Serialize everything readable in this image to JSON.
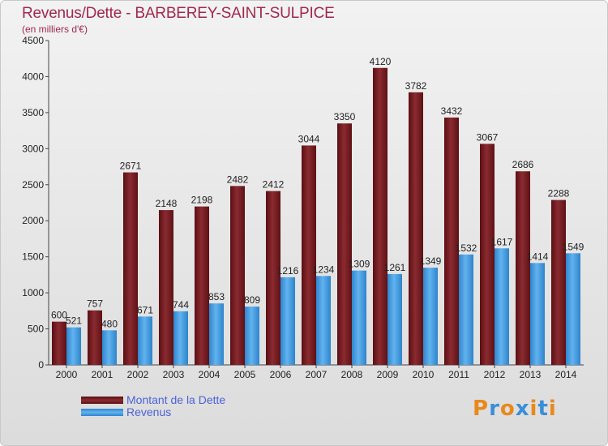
{
  "title": "Revenus/Dette - BARBEREY-SAINT-SULPICE",
  "subtitle": "(en milliers d'€)",
  "chart_data": {
    "type": "bar",
    "categories": [
      "2000",
      "2001",
      "2002",
      "2003",
      "2004",
      "2005",
      "2006",
      "2007",
      "2008",
      "2009",
      "2010",
      "2011",
      "2012",
      "2013",
      "2014"
    ],
    "series": [
      {
        "name": "Montant de la Dette",
        "color": "#7a1a1f",
        "values": [
          600,
          757,
          2671,
          2148,
          2198,
          2482,
          2412,
          3044,
          3350,
          4120,
          3782,
          3432,
          3067,
          2686,
          2288
        ]
      },
      {
        "name": "Revenus",
        "color": "#3d9be0",
        "values": [
          521,
          480,
          671,
          744,
          853,
          809,
          1216,
          1234,
          1309,
          1261,
          1349,
          1532,
          1617,
          1414,
          1549
        ]
      }
    ],
    "ylim": [
      0,
      4500
    ],
    "yticks": [
      0,
      500,
      1000,
      1500,
      2000,
      2500,
      3000,
      3500,
      4000,
      4500
    ],
    "grid": false,
    "legend": "bottom-left"
  },
  "logo": {
    "letters": [
      {
        "ch": "P",
        "color": "#e8891c"
      },
      {
        "ch": "r",
        "color": "#3a8fd6"
      },
      {
        "ch": "o",
        "color": "#e8891c"
      },
      {
        "ch": "x",
        "color": "#3a8fd6"
      },
      {
        "ch": "i",
        "color": "#e8891c"
      },
      {
        "ch": "t",
        "color": "#3a8fd6"
      },
      {
        "ch": "i",
        "color": "#e8891c"
      }
    ]
  }
}
